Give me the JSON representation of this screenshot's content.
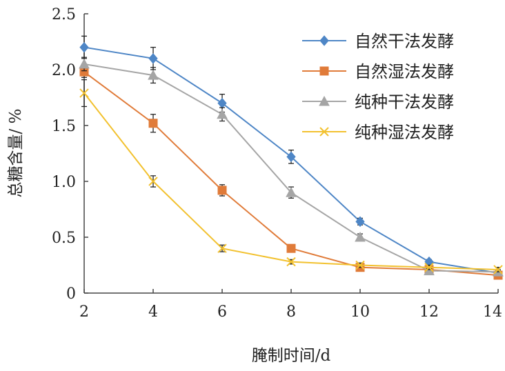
{
  "chart_data": {
    "type": "line",
    "title": "",
    "xlabel": "腌制时间/d",
    "ylabel": "总糖含量/ %",
    "x": [
      2,
      4,
      6,
      8,
      10,
      12,
      14
    ],
    "xlim": [
      2,
      14
    ],
    "ylim": [
      0,
      2.5
    ],
    "xticks": [
      "2",
      "4",
      "6",
      "8",
      "10",
      "12",
      "14"
    ],
    "yticks": [
      "0",
      "0.5",
      "1.0",
      "1.5",
      "2.0",
      "2.5"
    ],
    "grid": false,
    "legend_position": "top-right",
    "series": [
      {
        "name": "自然干法发酵",
        "color": "#4E86C6",
        "marker": "diamond",
        "values": [
          2.2,
          2.1,
          1.7,
          1.22,
          0.64,
          0.28,
          0.18
        ],
        "errors": [
          0.1,
          0.1,
          0.08,
          0.06,
          0.03,
          0.02,
          0.02
        ]
      },
      {
        "name": "自然湿法发酵",
        "color": "#E07B39",
        "marker": "square",
        "values": [
          1.98,
          1.52,
          0.92,
          0.4,
          0.23,
          0.21,
          0.16
        ],
        "errors": [
          0.05,
          0.08,
          0.05,
          0.02,
          0.02,
          0.02,
          0.02
        ]
      },
      {
        "name": "纯种干法发酵",
        "color": "#A5A5A5",
        "marker": "triangle",
        "values": [
          2.05,
          1.95,
          1.6,
          0.9,
          0.5,
          0.2,
          0.19
        ],
        "errors": [
          0.06,
          0.07,
          0.06,
          0.05,
          0.03,
          0.02,
          0.02
        ]
      },
      {
        "name": "纯种湿法发酵",
        "color": "#F2C12E",
        "marker": "x",
        "values": [
          1.79,
          1.0,
          0.4,
          0.28,
          0.25,
          0.23,
          0.21
        ],
        "errors": [
          0.12,
          0.05,
          0.03,
          0.02,
          0.02,
          0.02,
          0.02
        ]
      }
    ]
  }
}
